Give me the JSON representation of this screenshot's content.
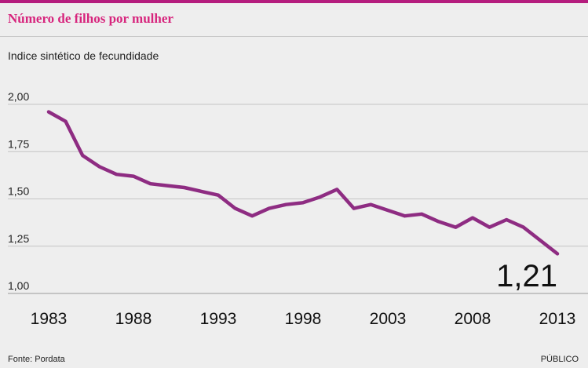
{
  "header": {
    "title": "Número de filhos por mulher",
    "subtitle": "Indice sintético de fecundidade"
  },
  "footer": {
    "source": "Fonte: Pordata",
    "publisher": "PÚBLICO"
  },
  "colors": {
    "accent": "#d7257d",
    "line": "#8e2c82",
    "background": "#eeeeee"
  },
  "chart_data": {
    "type": "line",
    "title": "Número de filhos por mulher",
    "ylabel": "Indice sintético de fecundidade",
    "xlabel": "",
    "ylim": [
      1.0,
      2.0
    ],
    "y_ticks": [
      "2,00",
      "1,75",
      "1,50",
      "1,25",
      "1,00"
    ],
    "y_tick_values": [
      2.0,
      1.75,
      1.5,
      1.25,
      1.0
    ],
    "x_ticks": [
      "1983",
      "1988",
      "1993",
      "1998",
      "2003",
      "2008",
      "2013"
    ],
    "x_tick_values": [
      1983,
      1988,
      1993,
      1998,
      2003,
      2008,
      2013
    ],
    "grid": true,
    "series": [
      {
        "x": [
          1983,
          1984,
          1985,
          1986,
          1987,
          1988,
          1989,
          1990,
          1991,
          1992,
          1993,
          1994,
          1995,
          1996,
          1997,
          1998,
          1999,
          2000,
          2001,
          2002,
          2003,
          2004,
          2005,
          2006,
          2007,
          2008,
          2009,
          2010,
          2011,
          2012,
          2013
        ],
        "values": [
          1.96,
          1.91,
          1.73,
          1.67,
          1.63,
          1.62,
          1.58,
          1.57,
          1.56,
          1.54,
          1.52,
          1.45,
          1.41,
          1.45,
          1.47,
          1.48,
          1.51,
          1.55,
          1.45,
          1.47,
          1.44,
          1.41,
          1.42,
          1.38,
          1.35,
          1.4,
          1.35,
          1.39,
          1.35,
          1.28,
          1.21
        ]
      }
    ],
    "annotation": "1,21"
  }
}
